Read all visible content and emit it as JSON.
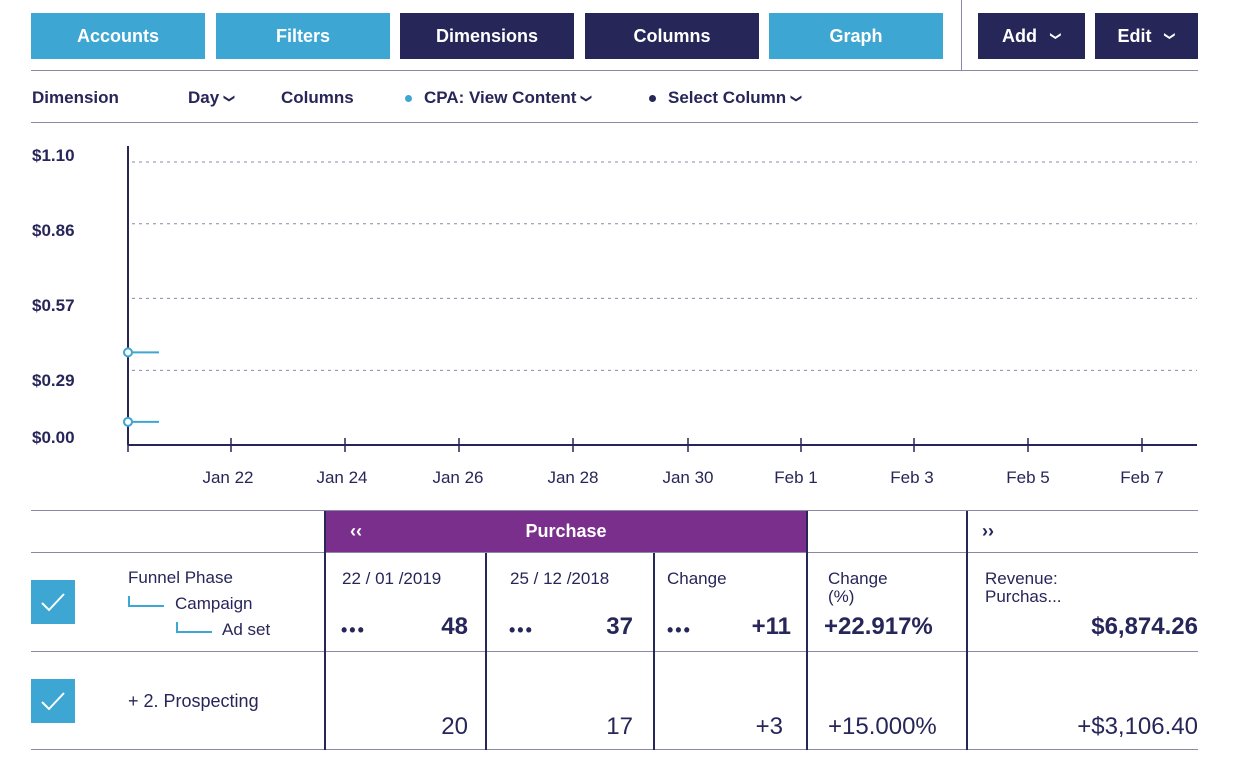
{
  "toolbar": {
    "buttons": [
      "Accounts",
      "Filters",
      "Dimensions",
      "Columns",
      "Graph"
    ],
    "add_label": "Add",
    "edit_label": "Edit"
  },
  "dimension_bar": {
    "dimension_label": "Dimension",
    "dimension_value": "Day",
    "columns_label": "Columns",
    "column1": "CPA: View Content",
    "column2": "Select Column"
  },
  "chart_data": {
    "type": "line",
    "title": "",
    "xlabel": "",
    "ylabel": "",
    "y_ticks": [
      "$1.10",
      "$0.86",
      "$0.57",
      "$0.29",
      "$0.00"
    ],
    "x_ticks": [
      "Jan 22",
      "Jan 24",
      "Jan 26",
      "Jan 28",
      "Jan 30",
      "Feb 1",
      "Feb 3",
      "Feb 5",
      "Feb 7"
    ],
    "ylim": [
      0,
      1.1
    ],
    "grid": "horizontal dotted",
    "series": [
      {
        "color": "#3ea6d2",
        "x": [
          "Jan 20"
        ],
        "y": [
          0.36
        ]
      },
      {
        "color": "#3ea6d2",
        "x": [
          "Jan 20"
        ],
        "y": [
          0.09
        ]
      }
    ]
  },
  "table": {
    "nav_prev": "‹‹",
    "nav_next": "››",
    "group_label": "Purchase",
    "hierarchy": [
      "Funnel Phase",
      "Campaign",
      "Ad set"
    ],
    "headers": [
      "22 / 01 /2019",
      "25 / 12 /2018",
      "Change",
      "Change\n(%)",
      "Revenue:\nPurchas..."
    ],
    "ellipsis": "•••",
    "total_row": [
      "48",
      "37",
      "+11",
      "+22.917%",
      "$6,874.26"
    ],
    "rows": [
      {
        "label": "+ 2. Prospecting",
        "values": [
          "20",
          "17",
          "+3",
          "+15.000%",
          "+$3,106.40"
        ]
      }
    ]
  },
  "colors": {
    "accent_light": "#3ea6d2",
    "navy": "#262659",
    "purple": "#7a2f8c"
  }
}
